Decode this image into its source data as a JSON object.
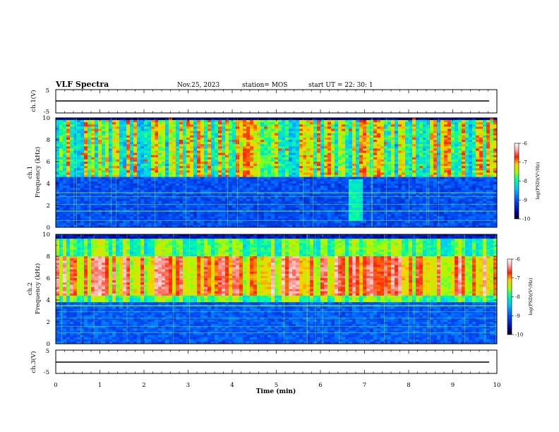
{
  "header": {
    "title": "VLF Spectra",
    "date": "Nov.25, 2023",
    "station": "station= MOS",
    "start": "start  UT =   22: 30: 1"
  },
  "colors": {
    "waveform": "#000000",
    "colormap": [
      "#000000",
      "#000090",
      "#0050ff",
      "#00c8ff",
      "#00ffa0",
      "#a0ff00",
      "#ffd000",
      "#ff2000",
      "#ffb4b4",
      "#ffffff"
    ]
  },
  "chart_data": [
    {
      "type": "line",
      "panel": "ch1-waveform",
      "ylabel": "ch.1(V)",
      "ylim": [
        -5,
        5
      ],
      "yticks": [
        "5",
        "-5"
      ],
      "xlim": [
        0,
        10
      ],
      "series": [
        {
          "values": [
            -1,
            -1
          ]
        }
      ]
    },
    {
      "type": "heatmap",
      "panel": "ch1-spectrogram",
      "ylabel": "ch.1\nFrequency (kHz)",
      "ylim": [
        0,
        10
      ],
      "yticks": [
        "0",
        "2",
        "4",
        "6",
        "8",
        "10"
      ],
      "xlim": [
        0,
        10
      ],
      "colorbar": {
        "label": "log(PSD)(V²/Hz)",
        "range": [
          -10,
          -6
        ],
        "ticks": [
          "-6",
          "-7",
          "-8",
          "-9",
          "-10"
        ]
      },
      "features": {
        "broadband_band_khz": [
          4.5,
          9.8
        ],
        "burst_time_min": 6.8,
        "burst_band_khz": [
          0.5,
          4.5
        ]
      }
    },
    {
      "type": "heatmap",
      "panel": "ch2-spectrogram",
      "ylabel": "ch.2\nFrequency (kHz)",
      "ylim": [
        0,
        10
      ],
      "yticks": [
        "0",
        "2",
        "4",
        "6",
        "8",
        "10"
      ],
      "xlim": [
        0,
        10
      ],
      "colorbar": {
        "label": "log(PSD)(V²/Hz)",
        "range": [
          -10,
          -6
        ],
        "ticks": [
          "-6",
          "-7",
          "-8",
          "-9",
          "-10"
        ]
      },
      "features": {
        "broadband_band_khz": [
          3.8,
          9.5
        ],
        "peak_band_khz": [
          4.5,
          8.0
        ]
      }
    },
    {
      "type": "line",
      "panel": "ch3-waveform",
      "ylabel": "ch.3(V)",
      "ylim": [
        -5,
        5
      ],
      "yticks": [
        "5",
        "-5"
      ],
      "xlim": [
        0,
        10
      ],
      "xlabel": "Time (min)",
      "xticks": [
        "0",
        "1",
        "2",
        "3",
        "4",
        "5",
        "6",
        "7",
        "8",
        "9",
        "10"
      ],
      "series": [
        {
          "values": [
            -1,
            -1
          ]
        }
      ]
    }
  ]
}
